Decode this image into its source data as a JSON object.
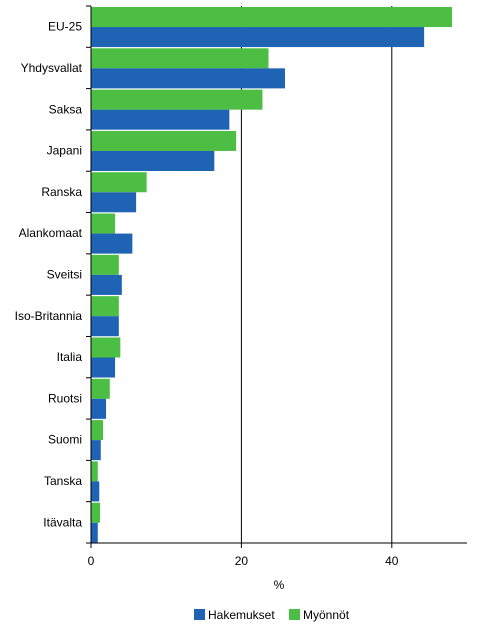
{
  "chart_data": {
    "type": "bar",
    "orientation": "horizontal",
    "categories": [
      "EU-25",
      "Yhdysvallat",
      "Saksa",
      "Japani",
      "Ranska",
      "Alankomaat",
      "Sveitsi",
      "Iso-Britannia",
      "Italia",
      "Ruotsi",
      "Suomi",
      "Tanska",
      "Itävalta"
    ],
    "series": [
      {
        "name": "Hakemukset",
        "color": "#1f64b4",
        "values": [
          44.3,
          25.8,
          18.4,
          16.4,
          6.0,
          5.5,
          4.1,
          3.7,
          3.2,
          2.0,
          1.3,
          1.1,
          0.9
        ]
      },
      {
        "name": "Myönnöt",
        "color": "#4cbe44",
        "values": [
          48.0,
          23.6,
          22.8,
          19.3,
          7.4,
          3.2,
          3.7,
          3.7,
          3.9,
          2.5,
          1.6,
          0.9,
          1.2
        ]
      }
    ],
    "xlabel": "%",
    "xlim": [
      0,
      50
    ],
    "xticks": [
      0,
      20,
      40
    ],
    "grid": true,
    "legend_position": "bottom"
  }
}
